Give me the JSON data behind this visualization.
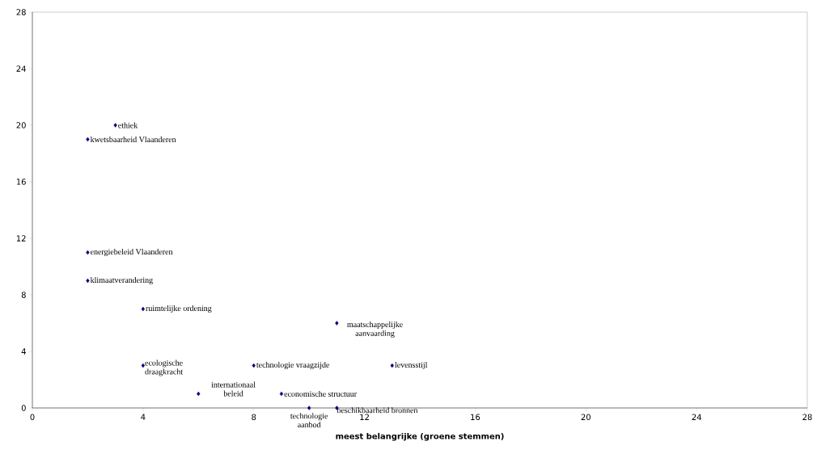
{
  "chart_data": {
    "type": "scatter",
    "xlabel": "meest belangrijke (groene stemmen)",
    "x": [
      3,
      2,
      2,
      2,
      4,
      11,
      4,
      8,
      13,
      6,
      9,
      10,
      11
    ],
    "values": [
      20,
      19,
      11,
      9,
      7,
      6,
      3,
      3,
      3,
      1,
      1,
      0,
      0
    ],
    "color": "#000080",
    "marker": "diamond",
    "xlim": [
      0,
      28
    ],
    "ylim": [
      0,
      28
    ],
    "xticks": [
      0,
      4,
      8,
      12,
      16,
      20,
      24,
      28
    ],
    "yticks": [
      0,
      4,
      8,
      12,
      16,
      20,
      24,
      28
    ],
    "grid": false,
    "annotations": [
      {
        "text": "ethiek",
        "x": 3,
        "y": 20
      },
      {
        "text": "kwetsbaarheid Vlaanderen",
        "x": 2,
        "y": 19
      },
      {
        "text": "energiebeleid Vlaanderen",
        "x": 2,
        "y": 11
      },
      {
        "text": "klimaatverandering",
        "x": 2,
        "y": 9
      },
      {
        "text": "ruimtelijke ordening",
        "x": 4,
        "y": 7
      },
      {
        "text": "maatschappelijke aanvaarding",
        "x": 11,
        "y": 6
      },
      {
        "text": "ecologische draagkracht",
        "x": 4,
        "y": 3
      },
      {
        "text": "technologie vraagzijde",
        "x": 8,
        "y": 3
      },
      {
        "text": "levensstijl",
        "x": 13,
        "y": 3
      },
      {
        "text": "internationaal beleid",
        "x": 6,
        "y": 1
      },
      {
        "text": "economische structuur",
        "x": 9,
        "y": 1
      },
      {
        "text": "technologie aanbod",
        "x": 10,
        "y": 0
      },
      {
        "text": "beschikbaarheid bronnen",
        "x": 11,
        "y": 0
      }
    ]
  }
}
